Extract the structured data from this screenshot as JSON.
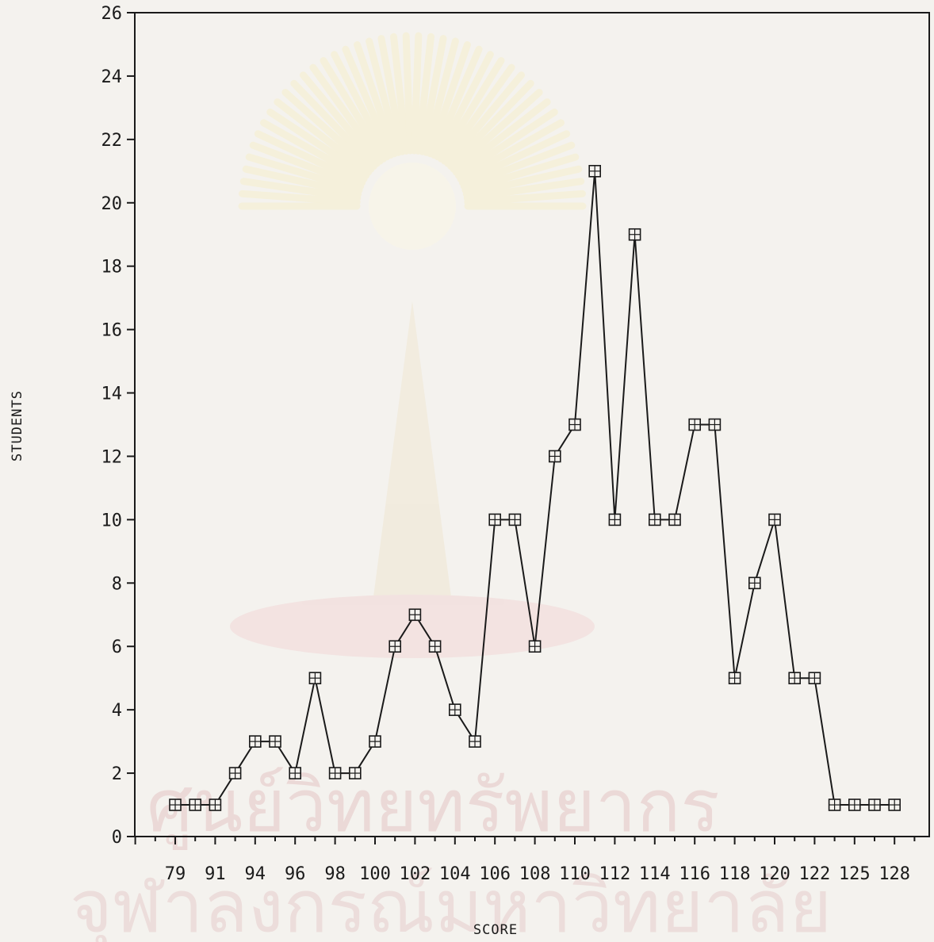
{
  "watermark": {
    "line1": "ศูนย์วิทยทรัพยากร",
    "line2": "จุฬาลงกรณ์มหาวิทยาลัย"
  },
  "chart_data": {
    "type": "line",
    "title": "",
    "xlabel": "SCORE",
    "ylabel": "STUDENTS",
    "ylim": [
      0,
      26
    ],
    "yticks": [
      0,
      2,
      4,
      6,
      8,
      10,
      12,
      14,
      16,
      18,
      20,
      22,
      24,
      26
    ],
    "grid": false,
    "marker": "boxed-cross",
    "x": [
      79,
      90,
      91,
      93,
      94,
      95,
      96,
      97,
      98,
      99,
      100,
      101,
      102,
      103,
      104,
      105,
      106,
      107,
      108,
      109,
      110,
      111,
      112,
      113,
      114,
      115,
      116,
      117,
      118,
      119,
      120,
      121,
      122,
      123,
      125,
      126,
      128
    ],
    "xtick_labels": [
      "79",
      "91",
      "94",
      "96",
      "98",
      "100",
      "102",
      "104",
      "106",
      "108",
      "110",
      "112",
      "114",
      "116",
      "118",
      "120",
      "122",
      "125",
      "128"
    ],
    "series": [
      {
        "values": [
          1,
          1,
          1,
          2,
          3,
          3,
          2,
          5,
          2,
          2,
          3,
          6,
          7,
          6,
          4,
          3,
          10,
          10,
          6,
          12,
          13,
          21,
          10,
          19,
          10,
          10,
          13,
          13,
          5,
          8,
          10,
          5,
          5,
          1,
          1,
          1,
          1
        ]
      }
    ]
  }
}
